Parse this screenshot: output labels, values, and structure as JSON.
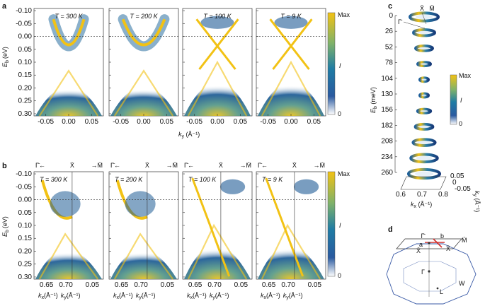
{
  "figure": {
    "panels": [
      {
        "label": "a",
        "temperatures": [
          "T = 300 K",
          "T = 200 K",
          "T = 100 K",
          "T = 9 K"
        ],
        "y_axis_label": "E",
        "y_axis_sub": "b",
        "y_axis_unit": "(eV)",
        "y_ticks": [
          "-0.10",
          "-0.05",
          "0.00",
          "0.05",
          "0.10",
          "0.15",
          "0.20",
          "0.25",
          "0.30"
        ],
        "x_ticks": [
          "-0.05",
          "0.00",
          "0.05"
        ],
        "x_axis_label": "k",
        "x_axis_sub": "y",
        "x_axis_unit": " (Å⁻¹)",
        "colorbar": {
          "max": "Max",
          "min": "0",
          "label": "I"
        }
      },
      {
        "label": "b",
        "temperatures": [
          "T = 300 K",
          "T = 200 K",
          "T = 100 K",
          "T = 9 K"
        ],
        "direction_labels": {
          "gamma": "Γ̄←",
          "x": "X̄",
          "m": "→M̄"
        },
        "y_axis_label": "E",
        "y_axis_sub": "b",
        "y_axis_unit": "(eV)",
        "y_ticks": [
          "-0.10",
          "-0.05",
          "0.00",
          "0.05",
          "0.10",
          "0.15",
          "0.20",
          "0.25",
          "0.30"
        ],
        "kx_ticks": [
          "0.65",
          "0.70"
        ],
        "ky_ticks": [
          "0.05"
        ],
        "x_label_kx": "k",
        "x_label_kx_sub": "x",
        "x_label_ky": "k",
        "x_label_ky_sub": "y",
        "x_axis_unit": "(Å⁻¹)",
        "colorbar": {
          "max": "Max",
          "min": "0",
          "label": "I"
        }
      },
      {
        "label": "c",
        "top_labels": {
          "x": "X̄",
          "m": "M̄",
          "gamma": "Γ̄"
        },
        "y_axis_label": "E",
        "y_axis_sub": "b",
        "y_axis_unit": " (meV)",
        "y_ticks": [
          "0",
          "26",
          "52",
          "78",
          "104",
          "130",
          "156",
          "182",
          "208",
          "234",
          "260"
        ],
        "kx_ticks": [
          "0.6",
          "0.7",
          "0.8"
        ],
        "kx_label": "k",
        "kx_sub": "x",
        "kx_unit": " (Å⁻¹)",
        "ky_ticks": [
          "0.05",
          "0",
          "-0.05"
        ],
        "ky_label": "k",
        "ky_sub": "y",
        "ky_unit": " (Å⁻¹)",
        "colorbar": {
          "max": "Max",
          "min": "0",
          "label": "I"
        }
      },
      {
        "label": "d",
        "point_labels": {
          "gamma_bar": "Γ̄",
          "b": "b",
          "a": "a",
          "x_bar": "X̄",
          "x_bar2": "X̄",
          "m_bar": "M̄",
          "gamma": "Γ",
          "w": "W",
          "l": "L"
        }
      }
    ],
    "colors": {
      "dark": "#173a78",
      "mid": "#1e7aa8",
      "teal": "#3b9a9a",
      "yellow": "#f2c214",
      "red": "#d0312d"
    }
  }
}
